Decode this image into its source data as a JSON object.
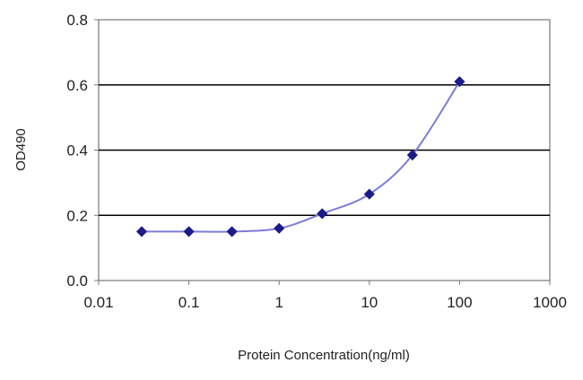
{
  "chart_data": {
    "type": "line",
    "title": "",
    "xlabel": "Protein Concentration(ng/ml)",
    "ylabel": "OD490",
    "x_scale": "log",
    "xlim": [
      0.01,
      1000
    ],
    "ylim": [
      0,
      0.8
    ],
    "x_ticks": [
      "0.01",
      "0.1",
      "1",
      "10",
      "100",
      "1000"
    ],
    "y_ticks": [
      "0.0",
      "0.2",
      "0.4",
      "0.6",
      "0.8"
    ],
    "grid": "horizontal",
    "legend": "none",
    "series": [
      {
        "x": [
          0.03,
          0.1,
          0.3,
          1,
          3,
          10,
          30,
          100
        ],
        "y": [
          0.15,
          0.15,
          0.15,
          0.16,
          0.205,
          0.265,
          0.385,
          0.61
        ]
      }
    ],
    "colors": {
      "line": "#7c7cd8",
      "marker": "#1b1b8a",
      "grid": "#000000",
      "frame": "#777777"
    }
  }
}
